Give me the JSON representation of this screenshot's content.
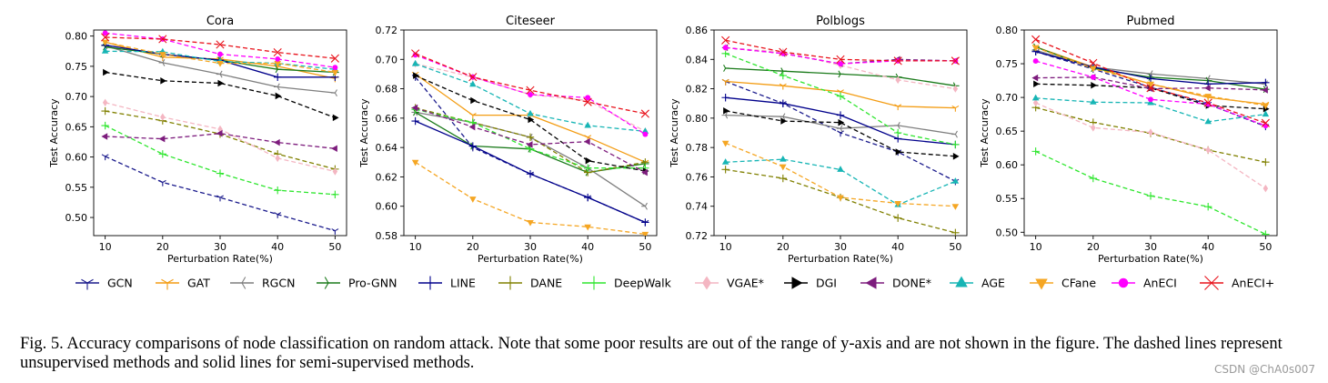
{
  "caption": "Fig. 5.  Accuracy comparisons of node classification on random attack. Note that some poor results are out of the range of y-axis and are not shown in the figure. The dashed lines represent unsupervised methods and solid lines for semi-supervised methods.",
  "watermark": "CSDN @ChA0s007",
  "methods": [
    {
      "name": "GCN",
      "color": "#1a1a8c",
      "marker": "tri_down",
      "dashed": true
    },
    {
      "name": "GAT",
      "color": "#f39c12",
      "marker": "tri_down",
      "dashed": false
    },
    {
      "name": "RGCN",
      "color": "#7f7f7f",
      "marker": "tri_left",
      "dashed": false
    },
    {
      "name": "Pro-GNN",
      "color": "#1a7a1a",
      "marker": "tri_right",
      "dashed": false
    },
    {
      "name": "LINE",
      "color": "#00008b",
      "marker": "plus",
      "dashed": false
    },
    {
      "name": "DANE",
      "color": "#808000",
      "marker": "plus",
      "dashed": true
    },
    {
      "name": "DeepWalk",
      "color": "#2ee62e",
      "marker": "plus",
      "dashed": true
    },
    {
      "name": "VGAE*",
      "color": "#f4b6c2",
      "marker": "diamond",
      "dashed": true
    },
    {
      "name": "DGI",
      "color": "#000000",
      "marker": "tri_right_f",
      "dashed": true
    },
    {
      "name": "DONE*",
      "color": "#7d1c7d",
      "marker": "tri_left_f",
      "dashed": true
    },
    {
      "name": "AGE",
      "color": "#17b5b5",
      "marker": "tri_up_f",
      "dashed": true
    },
    {
      "name": "CFane",
      "color": "#f5a623",
      "marker": "tri_down_f",
      "dashed": true
    },
    {
      "name": "AnECI",
      "color": "#ff00ff",
      "marker": "circle",
      "dashed": true
    },
    {
      "name": "AnECI+",
      "color": "#e8121b",
      "marker": "x",
      "dashed": true
    }
  ],
  "chart_data": [
    {
      "type": "line",
      "title": "Cora",
      "xlabel": "Perturbation Rate(%)",
      "ylabel": "Test Accuracy",
      "x": [
        10,
        20,
        30,
        40,
        50
      ],
      "xlim": [
        8,
        52
      ],
      "ylim": [
        0.47,
        0.81
      ],
      "yticks": [
        "0.50",
        "0.55",
        "0.60",
        "0.65",
        "0.70",
        "0.75",
        "0.80"
      ],
      "series": [
        {
          "name": "GCN",
          "values": [
            0.601,
            0.558,
            0.533,
            0.505,
            0.478
          ]
        },
        {
          "name": "GAT",
          "values": [
            0.79,
            0.765,
            0.762,
            0.75,
            0.73
          ]
        },
        {
          "name": "RGCN",
          "values": [
            0.784,
            0.756,
            0.737,
            0.716,
            0.706
          ]
        },
        {
          "name": "Pro-GNN",
          "values": [
            0.782,
            0.77,
            0.76,
            0.745,
            0.74
          ]
        },
        {
          "name": "LINE",
          "values": [
            0.785,
            0.77,
            0.76,
            0.732,
            0.732
          ]
        },
        {
          "name": "DANE",
          "values": [
            0.676,
            0.66,
            0.638,
            0.605,
            0.58
          ]
        },
        {
          "name": "DeepWalk",
          "values": [
            0.652,
            0.605,
            0.573,
            0.545,
            0.538
          ]
        },
        {
          "name": "VGAE*",
          "values": [
            0.69,
            0.666,
            0.646,
            0.598,
            0.576
          ]
        },
        {
          "name": "DGI",
          "values": [
            0.74,
            0.726,
            0.722,
            0.701,
            0.665
          ]
        },
        {
          "name": "DONE*",
          "values": [
            0.634,
            0.63,
            0.639,
            0.624,
            0.614
          ]
        },
        {
          "name": "AGE",
          "values": [
            0.775,
            0.774,
            0.758,
            0.755,
            0.745
          ]
        },
        {
          "name": "CFane",
          "values": [
            0.79,
            0.77,
            0.755,
            0.755,
            0.74
          ]
        },
        {
          "name": "AnECI",
          "values": [
            0.805,
            0.795,
            0.77,
            0.762,
            0.748
          ]
        },
        {
          "name": "AnECI+",
          "values": [
            0.798,
            0.795,
            0.786,
            0.773,
            0.763
          ]
        }
      ]
    },
    {
      "type": "line",
      "title": "Citeseer",
      "xlabel": "Perturbation Rate(%)",
      "ylabel": "Test Accuracy",
      "x": [
        10,
        20,
        30,
        40,
        50
      ],
      "xlim": [
        8,
        52
      ],
      "ylim": [
        0.58,
        0.72
      ],
      "yticks": [
        "0.58",
        "0.60",
        "0.62",
        "0.64",
        "0.66",
        "0.68",
        "0.70",
        "0.72"
      ],
      "series": [
        {
          "name": "GCN",
          "values": [
            0.688,
            0.64,
            0.622,
            0.606,
            0.589
          ]
        },
        {
          "name": "GAT",
          "values": [
            0.69,
            0.662,
            0.662,
            0.647,
            0.63
          ]
        },
        {
          "name": "RGCN",
          "values": [
            0.664,
            0.657,
            0.647,
            0.626,
            0.6
          ]
        },
        {
          "name": "Pro-GNN",
          "values": [
            0.664,
            0.641,
            0.639,
            0.623,
            0.629
          ]
        },
        {
          "name": "LINE",
          "values": [
            0.658,
            0.641,
            0.622,
            0.606,
            0.589
          ]
        },
        {
          "name": "DANE",
          "values": [
            0.667,
            0.657,
            0.647,
            0.623,
            0.63
          ]
        },
        {
          "name": "DeepWalk",
          "values": [
            0.666,
            0.657,
            0.639,
            0.626,
            0.626
          ]
        },
        {
          "name": "VGAE*",
          "values": [
            0.697,
            0.688,
            0.676,
            0.672,
            0.651
          ]
        },
        {
          "name": "DGI",
          "values": [
            0.689,
            0.672,
            0.659,
            0.631,
            0.624
          ]
        },
        {
          "name": "DONE*",
          "values": [
            0.667,
            0.654,
            0.642,
            0.644,
            0.623
          ]
        },
        {
          "name": "AGE",
          "values": [
            0.697,
            0.683,
            0.663,
            0.655,
            0.651
          ]
        },
        {
          "name": "CFane",
          "values": [
            0.63,
            0.605,
            0.589,
            0.586,
            0.581
          ]
        },
        {
          "name": "AnECI",
          "values": [
            0.703,
            0.688,
            0.676,
            0.674,
            0.649
          ]
        },
        {
          "name": "AnECI+",
          "values": [
            0.704,
            0.688,
            0.679,
            0.671,
            0.663
          ]
        }
      ]
    },
    {
      "type": "line",
      "title": "Polblogs",
      "xlabel": "Perturbation Rate(%)",
      "ylabel": "Test Accuracy",
      "x": [
        10,
        20,
        30,
        40,
        50
      ],
      "xlim": [
        8,
        52
      ],
      "ylim": [
        0.72,
        0.86
      ],
      "yticks": [
        "0.72",
        "0.74",
        "0.76",
        "0.78",
        "0.80",
        "0.82",
        "0.84",
        "0.86"
      ],
      "series": [
        {
          "name": "GCN",
          "values": [
            0.825,
            0.81,
            0.79,
            0.777,
            0.757
          ]
        },
        {
          "name": "GAT",
          "values": [
            0.825,
            0.822,
            0.818,
            0.808,
            0.807
          ]
        },
        {
          "name": "RGCN",
          "values": [
            0.802,
            0.801,
            0.793,
            0.795,
            0.789
          ]
        },
        {
          "name": "Pro-GNN",
          "values": [
            0.834,
            0.832,
            0.83,
            0.828,
            0.822
          ]
        },
        {
          "name": "LINE",
          "values": [
            0.814,
            0.81,
            0.802,
            0.786,
            0.782
          ]
        },
        {
          "name": "DANE",
          "values": [
            0.765,
            0.759,
            0.746,
            0.732,
            0.722
          ]
        },
        {
          "name": "DeepWalk",
          "values": [
            0.844,
            0.829,
            0.815,
            0.79,
            0.782
          ]
        },
        {
          "name": "VGAE*",
          "values": [
            0.848,
            0.845,
            0.836,
            0.826,
            0.82
          ]
        },
        {
          "name": "DGI",
          "values": [
            0.805,
            0.798,
            0.797,
            0.777,
            0.774
          ]
        },
        {
          "name": "DONE*",
          "values": [
            0.848,
            0.844,
            0.837,
            0.84,
            0.839
          ]
        },
        {
          "name": "AGE",
          "values": [
            0.77,
            0.772,
            0.765,
            0.741,
            0.757
          ]
        },
        {
          "name": "CFane",
          "values": [
            0.783,
            0.767,
            0.746,
            0.742,
            0.74
          ]
        },
        {
          "name": "AnECI",
          "values": [
            0.848,
            0.844,
            0.837,
            0.839,
            0.839
          ]
        },
        {
          "name": "AnECI+",
          "values": [
            0.853,
            0.845,
            0.84,
            0.839,
            0.839
          ]
        }
      ]
    },
    {
      "type": "line",
      "title": "Pubmed",
      "xlabel": "Perturbation Rate(%)",
      "ylabel": "Test Accuracy",
      "x": [
        10,
        20,
        30,
        40,
        50
      ],
      "xlim": [
        8,
        52
      ],
      "ylim": [
        0.495,
        0.8
      ],
      "yticks": [
        "0.50",
        "0.55",
        "0.60",
        "0.65",
        "0.70",
        "0.75",
        "0.80"
      ],
      "series": [
        {
          "name": "GCN",
          "values": [
            0.768,
            0.742,
            0.715,
            0.69,
            0.657
          ]
        },
        {
          "name": "GAT",
          "values": [
            0.775,
            0.745,
            0.72,
            0.7,
            0.69
          ]
        },
        {
          "name": "RGCN",
          "values": [
            0.77,
            0.745,
            0.735,
            0.728,
            0.72
          ]
        },
        {
          "name": "Pro-GNN",
          "values": [
            0.775,
            0.743,
            0.73,
            0.725,
            0.712
          ]
        },
        {
          "name": "LINE",
          "values": [
            0.768,
            0.745,
            0.728,
            0.72,
            0.722
          ]
        },
        {
          "name": "DANE",
          "values": [
            0.685,
            0.663,
            0.647,
            0.622,
            0.604
          ]
        },
        {
          "name": "DeepWalk",
          "values": [
            0.62,
            0.58,
            0.554,
            0.538,
            0.497
          ]
        },
        {
          "name": "VGAE*",
          "values": [
            0.692,
            0.655,
            0.648,
            0.622,
            0.565
          ]
        },
        {
          "name": "DGI",
          "values": [
            0.72,
            0.718,
            0.714,
            0.688,
            0.683
          ]
        },
        {
          "name": "DONE*",
          "values": [
            0.729,
            0.73,
            0.713,
            0.714,
            0.711
          ]
        },
        {
          "name": "AGE",
          "values": [
            0.699,
            0.693,
            0.692,
            0.664,
            0.675
          ]
        },
        {
          "name": "CFane",
          "values": [
            0.774,
            0.743,
            0.72,
            0.702,
            0.688
          ]
        },
        {
          "name": "AnECI",
          "values": [
            0.754,
            0.73,
            0.697,
            0.69,
            0.658
          ]
        },
        {
          "name": "AnECI+",
          "values": [
            0.786,
            0.751,
            0.714,
            0.692,
            0.662
          ]
        }
      ]
    }
  ]
}
